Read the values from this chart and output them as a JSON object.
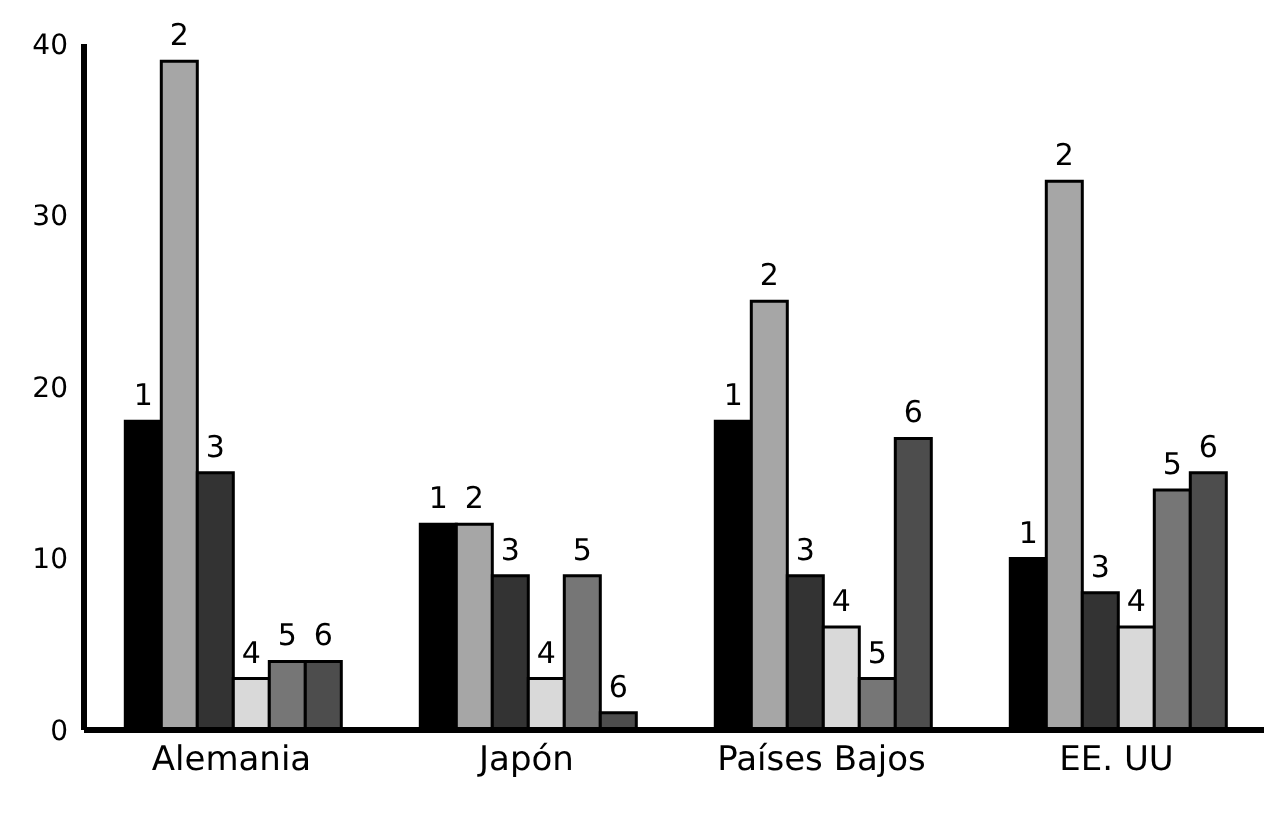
{
  "chart_data": {
    "type": "bar",
    "categories": [
      "Alemania",
      "Japón",
      "Países Bajos",
      "EE. UU"
    ],
    "series": [
      {
        "name": "1",
        "color": "#000000",
        "values": [
          18,
          12,
          18,
          10
        ]
      },
      {
        "name": "2",
        "color": "#a6a6a6",
        "values": [
          39,
          12,
          25,
          32
        ]
      },
      {
        "name": "3",
        "color": "#333333",
        "values": [
          15,
          9,
          9,
          8
        ]
      },
      {
        "name": "4",
        "color": "#d9d9d9",
        "values": [
          3,
          3,
          6,
          6
        ]
      },
      {
        "name": "5",
        "color": "#767676",
        "values": [
          4,
          9,
          3,
          14
        ]
      },
      {
        "name": "6",
        "color": "#4d4d4d",
        "values": [
          4,
          1,
          17,
          15
        ]
      }
    ],
    "ylim": [
      0,
      40
    ],
    "yticks": [
      0,
      10,
      20,
      30,
      40
    ],
    "grid": false,
    "legend": false
  }
}
